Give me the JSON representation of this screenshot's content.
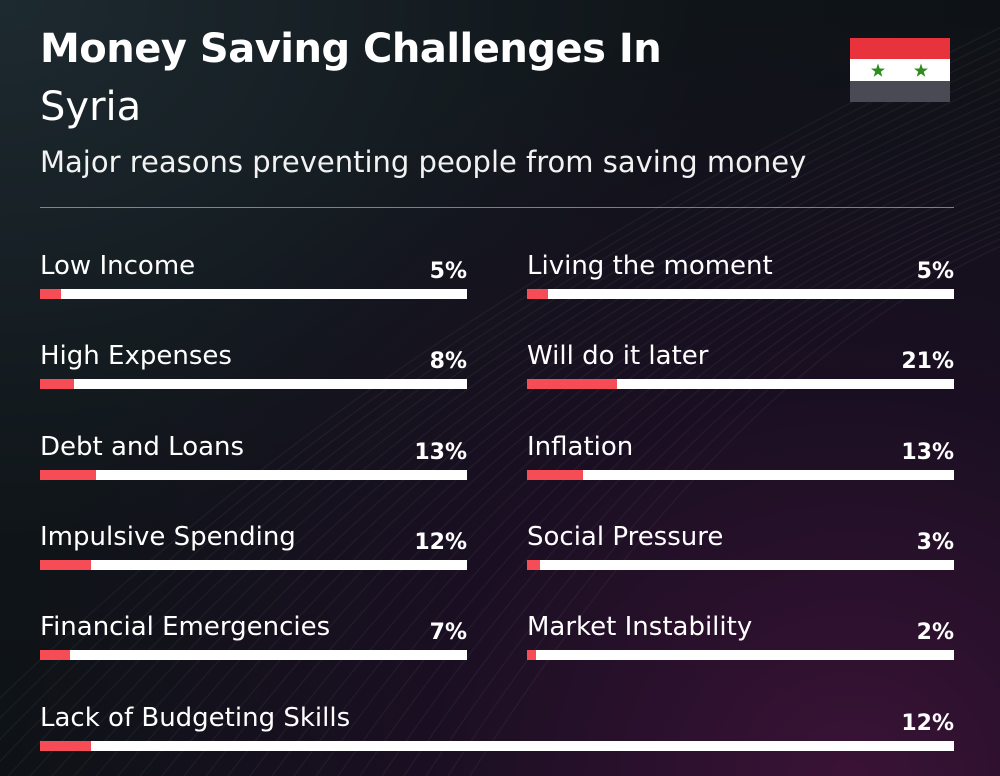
{
  "header": {
    "title": "Money Saving Challenges In",
    "country": "Syria",
    "subtitle": "Major reasons preventing people from saving money"
  },
  "flag": {
    "country": "Syria",
    "stripe_colors": [
      "#e8323c",
      "#ffffff",
      "#4a4a55"
    ],
    "star_color": "#2e8b1e",
    "icon": "syria-flag-icon"
  },
  "colors": {
    "bar_fill": "#f54c55",
    "bar_track": "#ffffff",
    "text": "#ffffff"
  },
  "chart_data": {
    "type": "bar",
    "orientation": "horizontal",
    "categories": [
      "Low Income",
      "Living the moment",
      "High Expenses",
      "Will do it later",
      "Debt and Loans",
      "Inflation",
      "Impulsive Spending",
      "Social Pressure",
      "Financial Emergencies",
      "Market Instability",
      "Lack of Budgeting Skills"
    ],
    "values": [
      5,
      5,
      8,
      21,
      13,
      13,
      12,
      3,
      7,
      2,
      12
    ],
    "value_labels": [
      "5%",
      "5%",
      "8%",
      "21%",
      "13%",
      "13%",
      "12%",
      "3%",
      "7%",
      "2%",
      "12%"
    ],
    "unit": "%",
    "xlim": [
      0,
      100
    ],
    "grid": false,
    "legend": "none"
  }
}
